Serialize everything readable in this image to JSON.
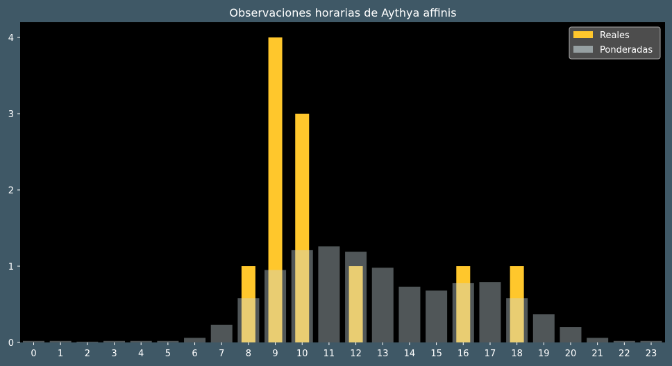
{
  "chart_data": {
    "type": "bar",
    "title": "Observaciones horarias de Aythya affinis",
    "xlabel": "",
    "ylabel": "",
    "categories": [
      "0",
      "1",
      "2",
      "3",
      "4",
      "5",
      "6",
      "7",
      "8",
      "9",
      "10",
      "11",
      "12",
      "13",
      "14",
      "15",
      "16",
      "17",
      "18",
      "19",
      "20",
      "21",
      "22",
      "23"
    ],
    "yticks": [
      "0",
      "1",
      "2",
      "3",
      "4"
    ],
    "ylim": [
      0,
      4.2
    ],
    "grid": false,
    "legend_position": "top-right",
    "series": [
      {
        "name": "Reales",
        "color": "#ffc72c",
        "values": [
          0,
          0,
          0,
          0,
          0,
          0,
          0,
          0,
          1,
          4,
          3,
          0,
          1,
          0,
          0,
          0,
          1,
          0,
          1,
          0,
          0,
          0,
          0,
          0
        ]
      },
      {
        "name": "Ponderadas",
        "color": "#c8d8dc",
        "opacity": 0.4,
        "values": [
          0.02,
          0.02,
          0.01,
          0.02,
          0.02,
          0.02,
          0.06,
          0.23,
          0.58,
          0.95,
          1.21,
          1.26,
          1.19,
          0.98,
          0.73,
          0.68,
          0.78,
          0.79,
          0.58,
          0.37,
          0.2,
          0.06,
          0.02,
          0.02
        ]
      }
    ],
    "colors": {
      "background": "#3f5866",
      "plot_background": "#000000",
      "text": "#ffffff"
    }
  }
}
